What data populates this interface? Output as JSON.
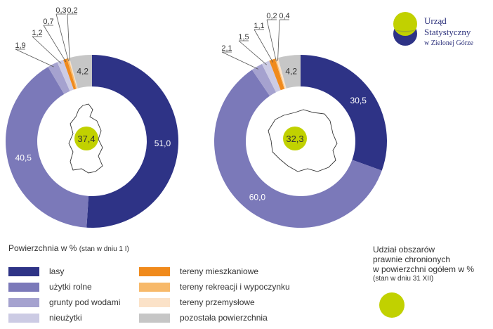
{
  "logo": {
    "line1": "Urząd Statystyczny",
    "line2": "w Zielonej Górze",
    "icon": "office-logo-icon"
  },
  "colors": {
    "lasy": "#2e3386",
    "uzytki_rolne": "#7b79b9",
    "grunty_pod_wodami": "#a5a2cf",
    "nieuzytki": "#cccbe4",
    "tereny_mieszkaniowe": "#f08a1c",
    "tereny_rekreacji": "#f7b96a",
    "tereny_przemyslowe": "#fbe2c8",
    "pozostala": "#c6c6c6",
    "center": "#c1d100"
  },
  "chart_data": [
    {
      "type": "pie",
      "region": "lubuskie",
      "center_value": "37,4",
      "slices": [
        {
          "key": "lasy",
          "value": 51.0,
          "label": "51,0"
        },
        {
          "key": "uzytki_rolne",
          "value": 40.5,
          "label": "40,5"
        },
        {
          "key": "grunty_pod_wodami",
          "value": 1.9,
          "label": "1,9"
        },
        {
          "key": "nieuzytki",
          "value": 1.2,
          "label": "1,2"
        },
        {
          "key": "tereny_mieszkaniowe",
          "value": 0.7,
          "label": "0,7"
        },
        {
          "key": "tereny_rekreacji",
          "value": 0.3,
          "label": "0,3"
        },
        {
          "key": "tereny_przemyslowe",
          "value": 0.2,
          "label": "0,2"
        },
        {
          "key": "pozostala",
          "value": 4.2,
          "label": "4,2"
        }
      ]
    },
    {
      "type": "pie",
      "region": "Polska",
      "center_value": "32,3",
      "slices": [
        {
          "key": "lasy",
          "value": 30.5,
          "label": "30,5"
        },
        {
          "key": "uzytki_rolne",
          "value": 60.0,
          "label": "60,0"
        },
        {
          "key": "grunty_pod_wodami",
          "value": 2.1,
          "label": "2,1"
        },
        {
          "key": "nieuzytki",
          "value": 1.5,
          "label": "1,5"
        },
        {
          "key": "tereny_mieszkaniowe",
          "value": 1.1,
          "label": "1,1"
        },
        {
          "key": "tereny_rekreacji",
          "value": 0.2,
          "label": "0,2"
        },
        {
          "key": "tereny_przemyslowe",
          "value": 0.4,
          "label": "0,4"
        },
        {
          "key": "pozostala",
          "value": 4.2,
          "label": "4,2"
        }
      ]
    }
  ],
  "legend": {
    "title": "Powierzchnia w %",
    "subtitle": "(stan w dniu 1 I)",
    "items": [
      {
        "key": "lasy",
        "label": "lasy"
      },
      {
        "key": "uzytki_rolne",
        "label": "użytki rolne"
      },
      {
        "key": "grunty_pod_wodami",
        "label": "grunty pod wodami"
      },
      {
        "key": "nieuzytki",
        "label": "nieużytki"
      },
      {
        "key": "tereny_mieszkaniowe",
        "label": "tereny mieszkaniowe"
      },
      {
        "key": "tereny_rekreacji",
        "label": "tereny rekreacji i wypoczynku"
      },
      {
        "key": "tereny_przemyslowe",
        "label": "tereny przemysłowe"
      },
      {
        "key": "pozostala",
        "label": "pozostała powierzchnia"
      }
    ]
  },
  "protected": {
    "line1": "Udział obszarów",
    "line2": "prawnie chronionych",
    "line3": "w powierzchni ogółem w %",
    "sub": "(stan w dniu 31 XII)"
  }
}
